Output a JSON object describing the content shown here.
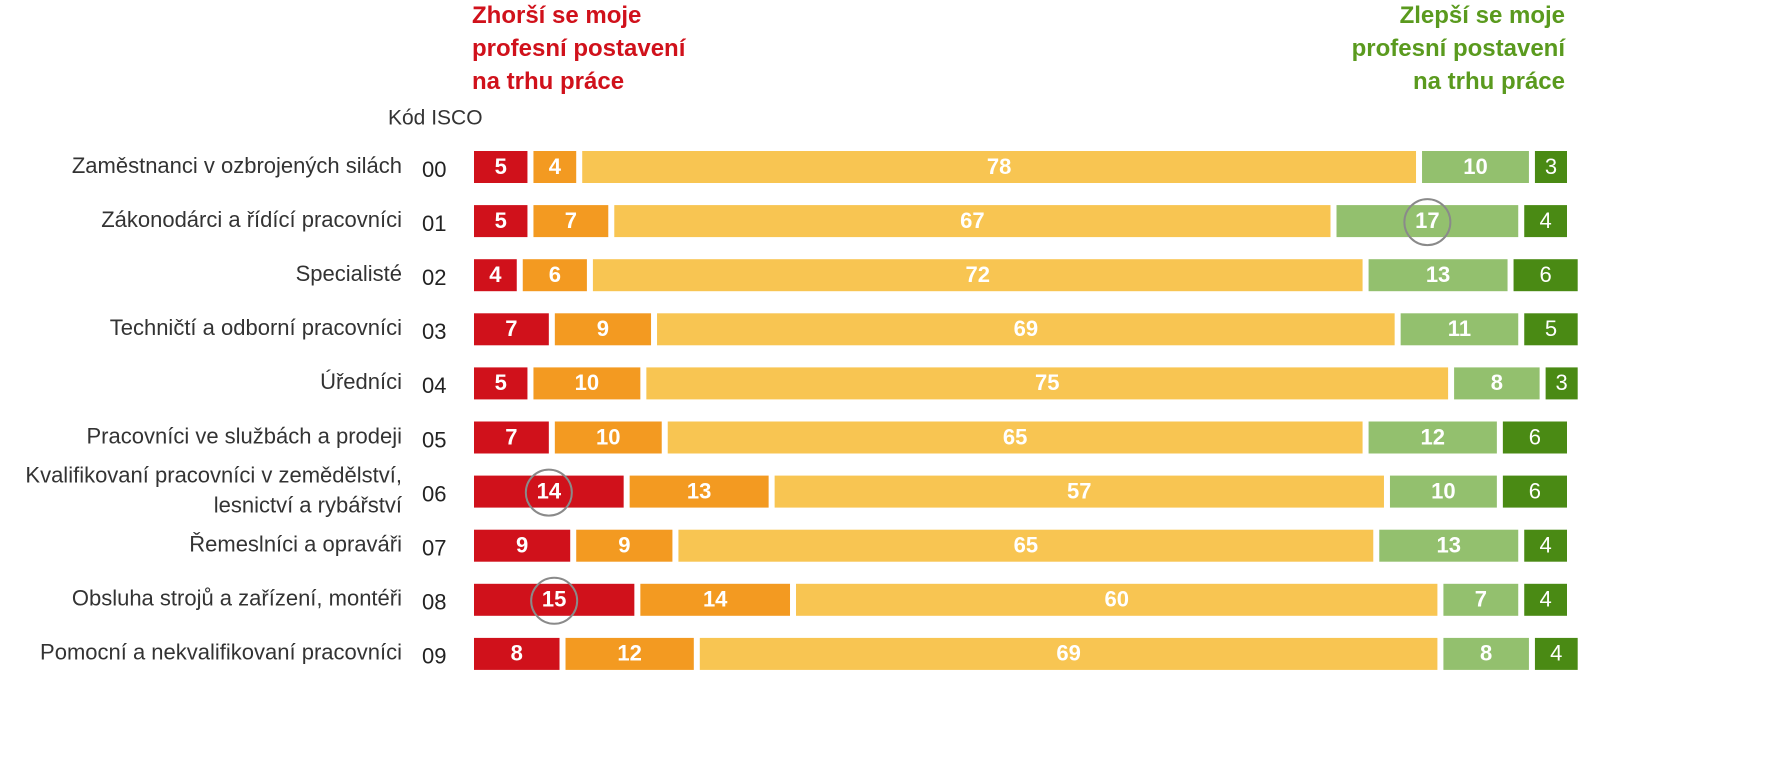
{
  "chart_data": {
    "type": "stacked-bar-horizontal",
    "annotations": {
      "left": "Zhorší se moje\nprofesní postavení\nna trhu práce",
      "right": "Zlepší se moje\nprofesní postavení\nna trhu práce",
      "code_header": "Kód ISCO"
    },
    "categories": [
      "Zaměstnanci v ozbrojených silách",
      "Zákonodárci a řídící pracovníci",
      "Specialisté",
      "Techničtí a odborní pracovníci",
      "Úředníci",
      "Pracovníci ve službách a prodeji",
      "Kvalifikovaní pracovníci v zemědělství,\nlesnictví a rybářství",
      "Řemeslníci a opraváři",
      "Obsluha strojů a zařízení, montéři",
      "Pomocní a nekvalifikovaní pracovníci"
    ],
    "codes": [
      "00",
      "01",
      "02",
      "03",
      "04",
      "05",
      "06",
      "07",
      "08",
      "09"
    ],
    "series": [
      {
        "color": "#d0111b",
        "bold": true,
        "values": [
          5,
          5,
          4,
          7,
          5,
          7,
          14,
          9,
          15,
          8
        ]
      },
      {
        "color": "#f39a21",
        "bold": true,
        "values": [
          4,
          7,
          6,
          9,
          10,
          10,
          13,
          9,
          14,
          12
        ]
      },
      {
        "color": "#f8c552",
        "bold": true,
        "values": [
          78,
          67,
          72,
          69,
          75,
          65,
          57,
          65,
          60,
          69
        ]
      },
      {
        "color": "#93c06e",
        "bold": true,
        "values": [
          10,
          17,
          13,
          11,
          8,
          12,
          10,
          13,
          7,
          8
        ]
      },
      {
        "color": "#4a8a14",
        "bold": false,
        "values": [
          3,
          4,
          6,
          5,
          3,
          6,
          6,
          4,
          4,
          4
        ]
      }
    ],
    "highlighted": [
      [
        1,
        3
      ],
      [
        6,
        0
      ],
      [
        8,
        0
      ]
    ]
  }
}
